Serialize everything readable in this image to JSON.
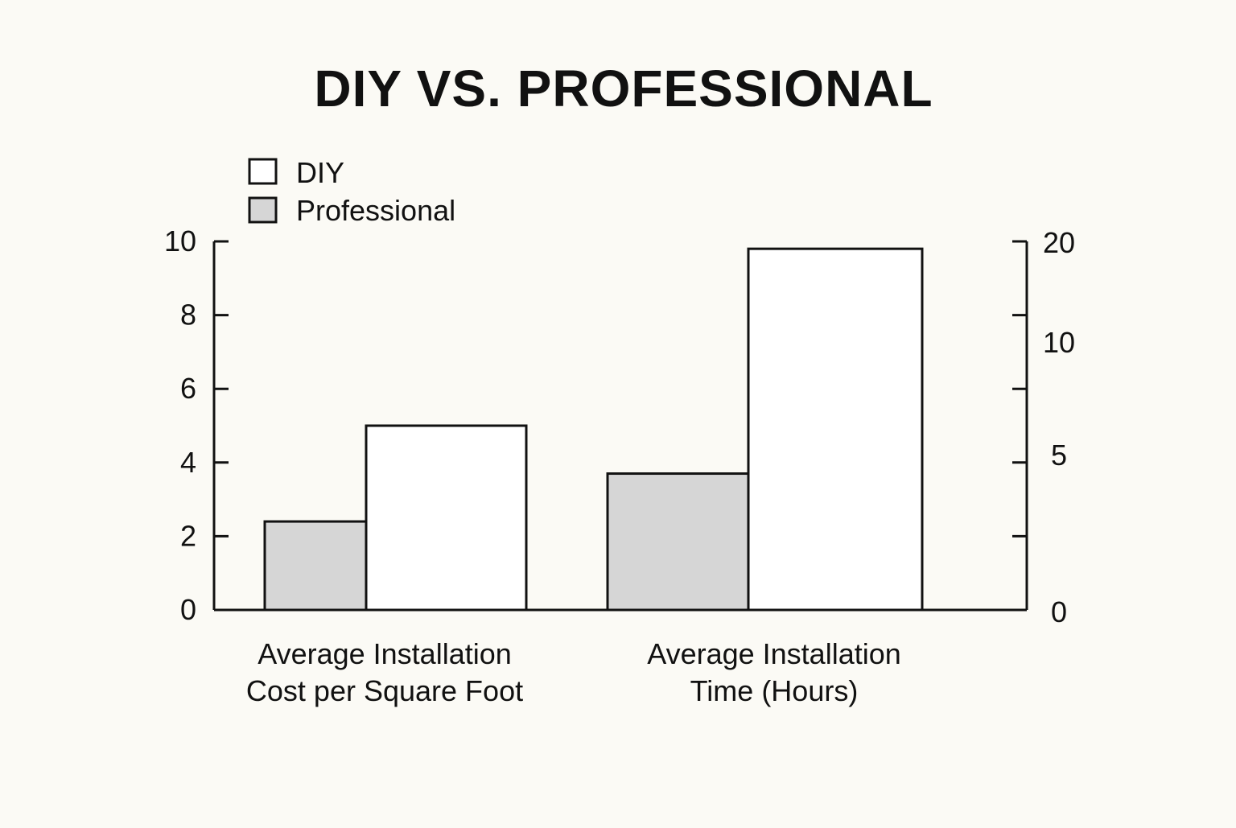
{
  "colors": {
    "background": "#fbfaf5",
    "ink": "#111111",
    "diy_fill": "#ffffff",
    "professional_fill": "#d6d6d6"
  },
  "chart_data": {
    "type": "bar",
    "title": "DIY VS. PROFESSIONAL",
    "legend": {
      "placement": "top-left",
      "entries": [
        {
          "label": "DIY",
          "color": "#ffffff"
        },
        {
          "label": "Professional",
          "color": "#d6d6d6"
        }
      ]
    },
    "categories": [
      [
        "Average Installation",
        "Cost per Square Foot"
      ],
      [
        "Average Installation",
        "Time (Hours)"
      ]
    ],
    "axes": {
      "left": {
        "range": [
          0,
          10
        ],
        "ticks": [
          0,
          2,
          4,
          6,
          8,
          10
        ],
        "tick_labels": [
          "0",
          "2",
          "4",
          "6",
          "8",
          "10"
        ]
      },
      "right": {
        "range": [
          0,
          20
        ],
        "ticks": [
          0,
          5,
          10,
          20
        ],
        "tick_labels": [
          "0",
          "5",
          "10",
          "20"
        ]
      }
    },
    "grid": false,
    "groups": [
      {
        "axis": "left",
        "bars": [
          {
            "series": "Professional",
            "value": 2.4
          },
          {
            "series": "DIY",
            "value": 5.0
          }
        ]
      },
      {
        "axis": "right",
        "bars": [
          {
            "series": "Professional",
            "value": 7.4
          },
          {
            "series": "DIY",
            "value": 19.6
          }
        ]
      }
    ]
  }
}
